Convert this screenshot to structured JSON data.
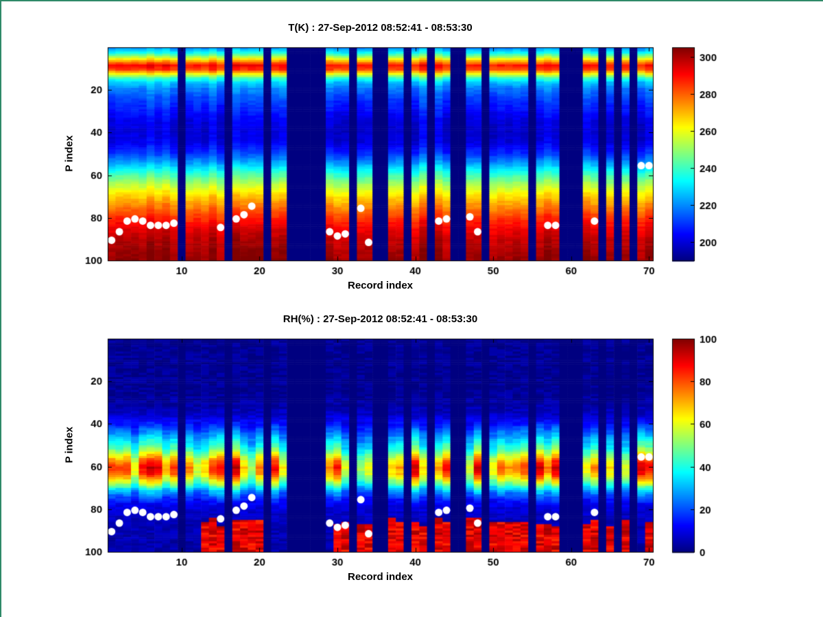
{
  "figure": {
    "background": "#ffffff",
    "edge_accent_color": "#2f8a68",
    "dot_color": "#ffffff",
    "colormap_name": "jet"
  },
  "chart_data": [
    {
      "type": "heatmap",
      "title": "T(K) : 27-Sep-2012 08:52:41 - 08:53:30",
      "xlabel": "Record index",
      "ylabel": "P index",
      "n_records": 70,
      "n_levels": 100,
      "x_ticks": [
        10,
        20,
        30,
        40,
        50,
        60,
        70
      ],
      "y_ticks": [
        20,
        40,
        60,
        80,
        100
      ],
      "y_axis_reversed": true,
      "grid": false,
      "colormap": "jet",
      "color_range": [
        190,
        305
      ],
      "colorbar_ticks": [
        200,
        220,
        240,
        260,
        280,
        300
      ],
      "profile_p": [
        1,
        3,
        5,
        7,
        9,
        11,
        13,
        15,
        17,
        20,
        25,
        30,
        35,
        40,
        45,
        50,
        55,
        60,
        65,
        70,
        75,
        80,
        85,
        90,
        95,
        100
      ],
      "profile_value": [
        222,
        234,
        252,
        272,
        290,
        284,
        262,
        240,
        228,
        219,
        212,
        207,
        202,
        200,
        202,
        210,
        224,
        240,
        254,
        266,
        276,
        285,
        293,
        298,
        301,
        303
      ],
      "missing_records": [
        10,
        16,
        21,
        24,
        25,
        26,
        27,
        28,
        32,
        35,
        36,
        39,
        42,
        45,
        46,
        49,
        55,
        59,
        60,
        61,
        64,
        66,
        68
      ],
      "column_noise_amplitude": 8,
      "cell_noise_amplitude": 4,
      "overlay_dots_color": "#ffffff",
      "overlay_dots": [
        [
          1,
          91
        ],
        [
          2,
          87
        ],
        [
          3,
          82
        ],
        [
          4,
          81
        ],
        [
          5,
          82
        ],
        [
          6,
          84
        ],
        [
          7,
          84
        ],
        [
          8,
          84
        ],
        [
          9,
          83
        ],
        [
          15,
          85
        ],
        [
          17,
          81
        ],
        [
          18,
          79
        ],
        [
          19,
          75
        ],
        [
          29,
          87
        ],
        [
          30,
          89
        ],
        [
          31,
          88
        ],
        [
          33,
          76
        ],
        [
          34,
          92
        ],
        [
          43,
          82
        ],
        [
          44,
          81
        ],
        [
          47,
          80
        ],
        [
          48,
          87
        ],
        [
          57,
          84
        ],
        [
          58,
          84
        ],
        [
          63,
          82
        ],
        [
          69,
          56
        ],
        [
          70,
          56
        ]
      ]
    },
    {
      "type": "heatmap",
      "title": "RH(%) : 27-Sep-2012 08:52:41 - 08:53:30",
      "xlabel": "Record index",
      "ylabel": "P index",
      "n_records": 70,
      "n_levels": 100,
      "x_ticks": [
        10,
        20,
        30,
        40,
        50,
        60,
        70
      ],
      "y_ticks": [
        20,
        40,
        60,
        80,
        100
      ],
      "y_axis_reversed": true,
      "grid": false,
      "colormap": "jet",
      "color_range": [
        0,
        100
      ],
      "colorbar_ticks": [
        0,
        20,
        40,
        60,
        80,
        100
      ],
      "profile_p": [
        1,
        25,
        32,
        36,
        40,
        44,
        48,
        52,
        55,
        58,
        61,
        64,
        68,
        72,
        76,
        80,
        85,
        90,
        100
      ],
      "profile_value": [
        2,
        2,
        4,
        7,
        13,
        22,
        32,
        42,
        55,
        68,
        75,
        70,
        52,
        28,
        15,
        9,
        6,
        5,
        4
      ],
      "missing_records": [
        10,
        16,
        21,
        24,
        25,
        26,
        27,
        28,
        32,
        35,
        36,
        39,
        42,
        45,
        46,
        49,
        55,
        59,
        60,
        61,
        64,
        66,
        68
      ],
      "band_variation": 0.28,
      "cell_noise_amplitude": 6,
      "bottom_red_records": [
        13,
        14,
        15,
        17,
        18,
        19,
        20,
        30,
        31,
        33,
        34,
        37,
        38,
        40,
        41,
        43,
        44,
        47,
        48,
        50,
        51,
        52,
        53,
        54,
        56,
        57,
        58,
        62,
        63,
        65,
        67,
        70
      ],
      "bottom_red_start_p": 87,
      "bottom_red_value": 90,
      "overlay_dots_color": "#ffffff",
      "overlay_dots": [
        [
          1,
          91
        ],
        [
          2,
          87
        ],
        [
          3,
          82
        ],
        [
          4,
          81
        ],
        [
          5,
          82
        ],
        [
          6,
          84
        ],
        [
          7,
          84
        ],
        [
          8,
          84
        ],
        [
          9,
          83
        ],
        [
          15,
          85
        ],
        [
          17,
          81
        ],
        [
          18,
          79
        ],
        [
          19,
          75
        ],
        [
          29,
          87
        ],
        [
          30,
          89
        ],
        [
          31,
          88
        ],
        [
          33,
          76
        ],
        [
          34,
          92
        ],
        [
          43,
          82
        ],
        [
          44,
          81
        ],
        [
          47,
          80
        ],
        [
          48,
          87
        ],
        [
          57,
          84
        ],
        [
          58,
          84
        ],
        [
          63,
          82
        ],
        [
          69,
          56
        ],
        [
          70,
          56
        ]
      ]
    }
  ]
}
